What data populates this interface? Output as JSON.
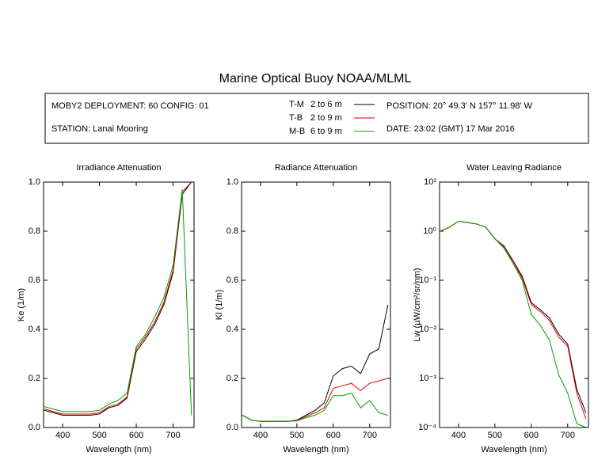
{
  "title": "Marine Optical Buoy NOAA/MLML",
  "info": {
    "deployment": "MOBY2 DEPLOYMENT: 60 CONFIG: 01",
    "station": "STATION: Lanai Mooring",
    "position": "POSITION: 20° 49.3' N   157° 11.98' W",
    "date": "DATE: 23:02 (GMT) 17 Mar 2016"
  },
  "chart_data": [
    {
      "type": "line",
      "title": "Irradiance Attenuation",
      "x_label": "Wavelength (nm)",
      "y_label": "Ke  (1/m)",
      "x": [
        350,
        375,
        400,
        425,
        450,
        475,
        500,
        525,
        550,
        575,
        600,
        625,
        650,
        675,
        700,
        725,
        750
      ],
      "xlim": [
        348,
        757
      ],
      "xticks": [
        400,
        500,
        600,
        700
      ],
      "ylim": [
        0,
        1
      ],
      "yticks": [
        {
          "value": 0,
          "label": "0.0"
        },
        0.2,
        0.4,
        0.6,
        0.8,
        {
          "value": 1,
          "label": "1.0"
        }
      ],
      "series": [
        {
          "name": "T-M",
          "depth": "2 to 6  m",
          "color": "#000000",
          "values": [
            0.07,
            0.06,
            0.05,
            0.05,
            0.05,
            0.05,
            0.055,
            0.08,
            0.09,
            0.12,
            0.31,
            0.36,
            0.42,
            0.5,
            0.63,
            0.95,
            1.0
          ]
        },
        {
          "name": "T-B",
          "depth": "2 to 9  m",
          "color": "#e00000",
          "values": [
            0.075,
            0.065,
            0.055,
            0.055,
            0.055,
            0.055,
            0.06,
            0.085,
            0.095,
            0.125,
            0.32,
            0.37,
            0.43,
            0.51,
            0.64,
            0.96,
            1.0
          ]
        },
        {
          "name": "M-B",
          "depth": "6 to 9  m",
          "color": "#00a000",
          "values": [
            0.085,
            0.075,
            0.065,
            0.065,
            0.065,
            0.065,
            0.07,
            0.095,
            0.11,
            0.14,
            0.33,
            0.38,
            0.45,
            0.53,
            0.66,
            0.97,
            0.05
          ]
        }
      ]
    },
    {
      "type": "line",
      "title": "Radiance Attenuation",
      "x_label": "Wavelength (nm)",
      "y_label": "Kl  (1/m)",
      "x": [
        350,
        375,
        400,
        425,
        450,
        475,
        500,
        525,
        550,
        575,
        600,
        625,
        650,
        675,
        700,
        725,
        750
      ],
      "xlim": [
        348,
        757
      ],
      "xticks": [
        400,
        500,
        600,
        700
      ],
      "ylim": [
        0,
        1
      ],
      "yticks": [
        {
          "value": 0,
          "label": "0.0"
        },
        0.2,
        0.4,
        0.6,
        0.8,
        {
          "value": 1,
          "label": "1.0"
        }
      ],
      "series": [
        {
          "color": "#000000",
          "values": [
            0.05,
            0.03,
            0.025,
            0.025,
            0.025,
            0.025,
            0.03,
            0.05,
            0.07,
            0.1,
            0.21,
            0.24,
            0.25,
            0.22,
            0.3,
            0.32,
            0.5
          ]
        },
        {
          "color": "#e00000",
          "values": [
            0.05,
            0.03,
            0.025,
            0.025,
            0.025,
            0.025,
            0.028,
            0.045,
            0.06,
            0.08,
            0.16,
            0.17,
            0.18,
            0.15,
            0.18,
            0.19,
            0.2
          ]
        },
        {
          "color": "#00a000",
          "values": [
            0.05,
            0.03,
            0.025,
            0.025,
            0.025,
            0.025,
            0.027,
            0.04,
            0.05,
            0.07,
            0.13,
            0.13,
            0.14,
            0.08,
            0.11,
            0.06,
            0.05
          ]
        }
      ]
    },
    {
      "type": "line",
      "title": "Water Leaving Radiance",
      "x_label": "Wavelength (nm)",
      "y_label": "Lw  (µW/cm²/sr/nm)",
      "log_y": true,
      "x": [
        350,
        375,
        400,
        425,
        450,
        475,
        500,
        525,
        550,
        575,
        600,
        625,
        650,
        675,
        700,
        725,
        750
      ],
      "xlim": [
        348,
        757
      ],
      "xticks": [
        400,
        500,
        600,
        700
      ],
      "ylim": [
        0.0001,
        10
      ],
      "yticks": [
        {
          "value": 0.0001,
          "label": "10⁻⁴"
        },
        {
          "value": 0.001,
          "label": "10⁻³"
        },
        {
          "value": 0.01,
          "label": "10⁻²"
        },
        {
          "value": 0.1,
          "label": "10⁻¹"
        },
        {
          "value": 1,
          "label": "10⁰"
        },
        {
          "value": 10,
          "label": "10¹"
        }
      ],
      "series": [
        {
          "color": "#000000",
          "values": [
            1.0,
            1.2,
            1.6,
            1.5,
            1.4,
            1.2,
            0.7,
            0.5,
            0.25,
            0.12,
            0.035,
            0.025,
            0.017,
            0.008,
            0.005,
            0.0006,
            0.0002
          ]
        },
        {
          "color": "#e00000",
          "values": [
            1.0,
            1.2,
            1.6,
            1.5,
            1.4,
            1.2,
            0.7,
            0.48,
            0.24,
            0.11,
            0.032,
            0.023,
            0.015,
            0.007,
            0.0045,
            0.0005,
            0.00015
          ]
        },
        {
          "color": "#00a000",
          "values": [
            1.0,
            1.2,
            1.6,
            1.5,
            1.4,
            1.2,
            0.7,
            0.45,
            0.22,
            0.1,
            0.02,
            0.012,
            0.006,
            0.0012,
            0.0005,
            0.00012,
            0.0001
          ]
        }
      ]
    }
  ]
}
